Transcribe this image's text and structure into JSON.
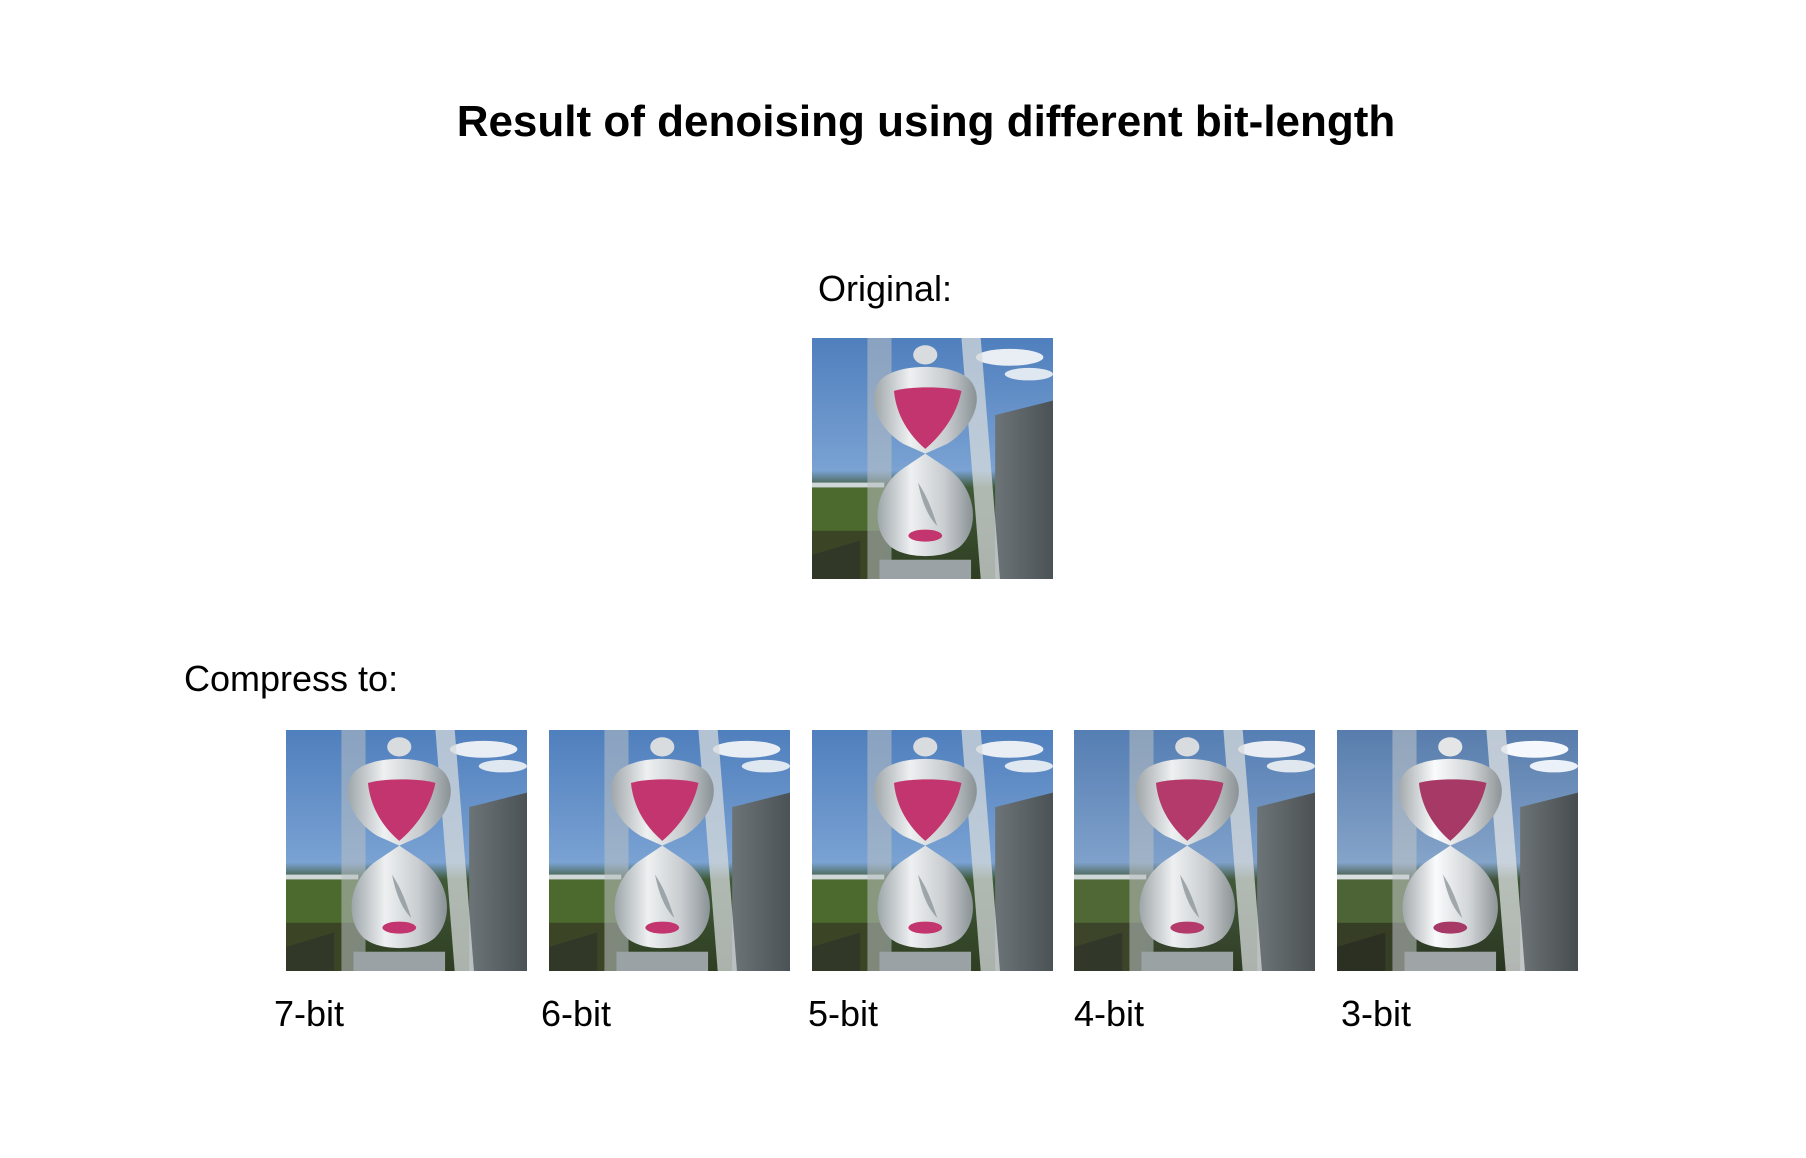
{
  "title": "Result of denoising using different bit-length",
  "original_label": "Original:",
  "compress_label": "Compress to:",
  "images": [
    {
      "caption": "7-bit",
      "icon": "hourglass-image"
    },
    {
      "caption": "6-bit",
      "icon": "hourglass-image"
    },
    {
      "caption": "5-bit",
      "icon": "hourglass-image"
    },
    {
      "caption": "4-bit",
      "icon": "hourglass-image"
    },
    {
      "caption": "3-bit",
      "icon": "hourglass-image"
    }
  ],
  "colors": {
    "sky": "#5b86c2",
    "sand": "#c0336b",
    "glass": "#d6d8da",
    "wall": "#5d6568",
    "grass": "#4d6a2f"
  }
}
